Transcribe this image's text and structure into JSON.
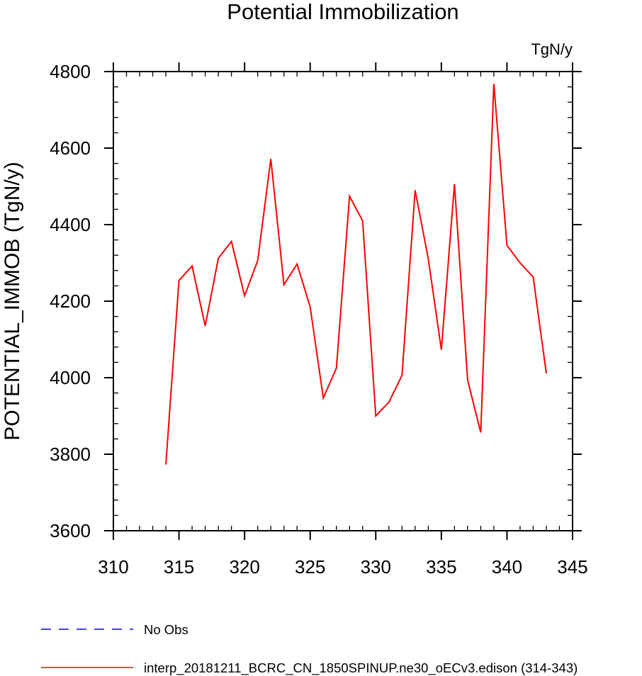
{
  "chart_data": {
    "type": "line",
    "title": "Potential Immobilization",
    "units_label": "TgN/y",
    "ylabel": "POTENTIAL_IMMOB  (TgN/y)",
    "xlabel": "",
    "xlim": [
      310,
      345
    ],
    "ylim": [
      3600,
      4800
    ],
    "x_major_ticks": [
      310,
      315,
      320,
      325,
      330,
      335,
      340,
      345
    ],
    "x_tick_labels": [
      "310",
      "315",
      "320",
      "325",
      "330",
      "335",
      "340",
      "345"
    ],
    "x_minor_step": 1,
    "y_major_ticks": [
      3600,
      3800,
      4000,
      4200,
      4400,
      4600,
      4800
    ],
    "y_tick_labels": [
      "3600",
      "3800",
      "4000",
      "4200",
      "4400",
      "4600",
      "4800"
    ],
    "y_minor_step": 40,
    "grid": false,
    "legend_position": "bottom-left",
    "series": [
      {
        "name": "No Obs",
        "color": "#0000ff",
        "style": "dashed",
        "x": [],
        "y": []
      },
      {
        "name": "interp_20181211_BCRC_CN_1850SPINUP.ne30_oECv3.edison (314-343)",
        "color": "#ff0000",
        "style": "solid",
        "x": [
          314,
          315,
          316,
          317,
          318,
          319,
          320,
          321,
          322,
          323,
          324,
          325,
          326,
          327,
          328,
          329,
          330,
          331,
          332,
          333,
          334,
          335,
          336,
          337,
          338,
          339,
          340,
          341,
          342,
          343
        ],
        "y": [
          3773,
          4254,
          4292,
          4135,
          4312,
          4356,
          4214,
          4306,
          4572,
          4243,
          4297,
          4185,
          3947,
          4025,
          4474,
          4410,
          3900,
          3936,
          4006,
          4490,
          4311,
          4073,
          4506,
          3994,
          3857,
          4768,
          4346,
          4300,
          4263,
          4011
        ]
      }
    ]
  }
}
